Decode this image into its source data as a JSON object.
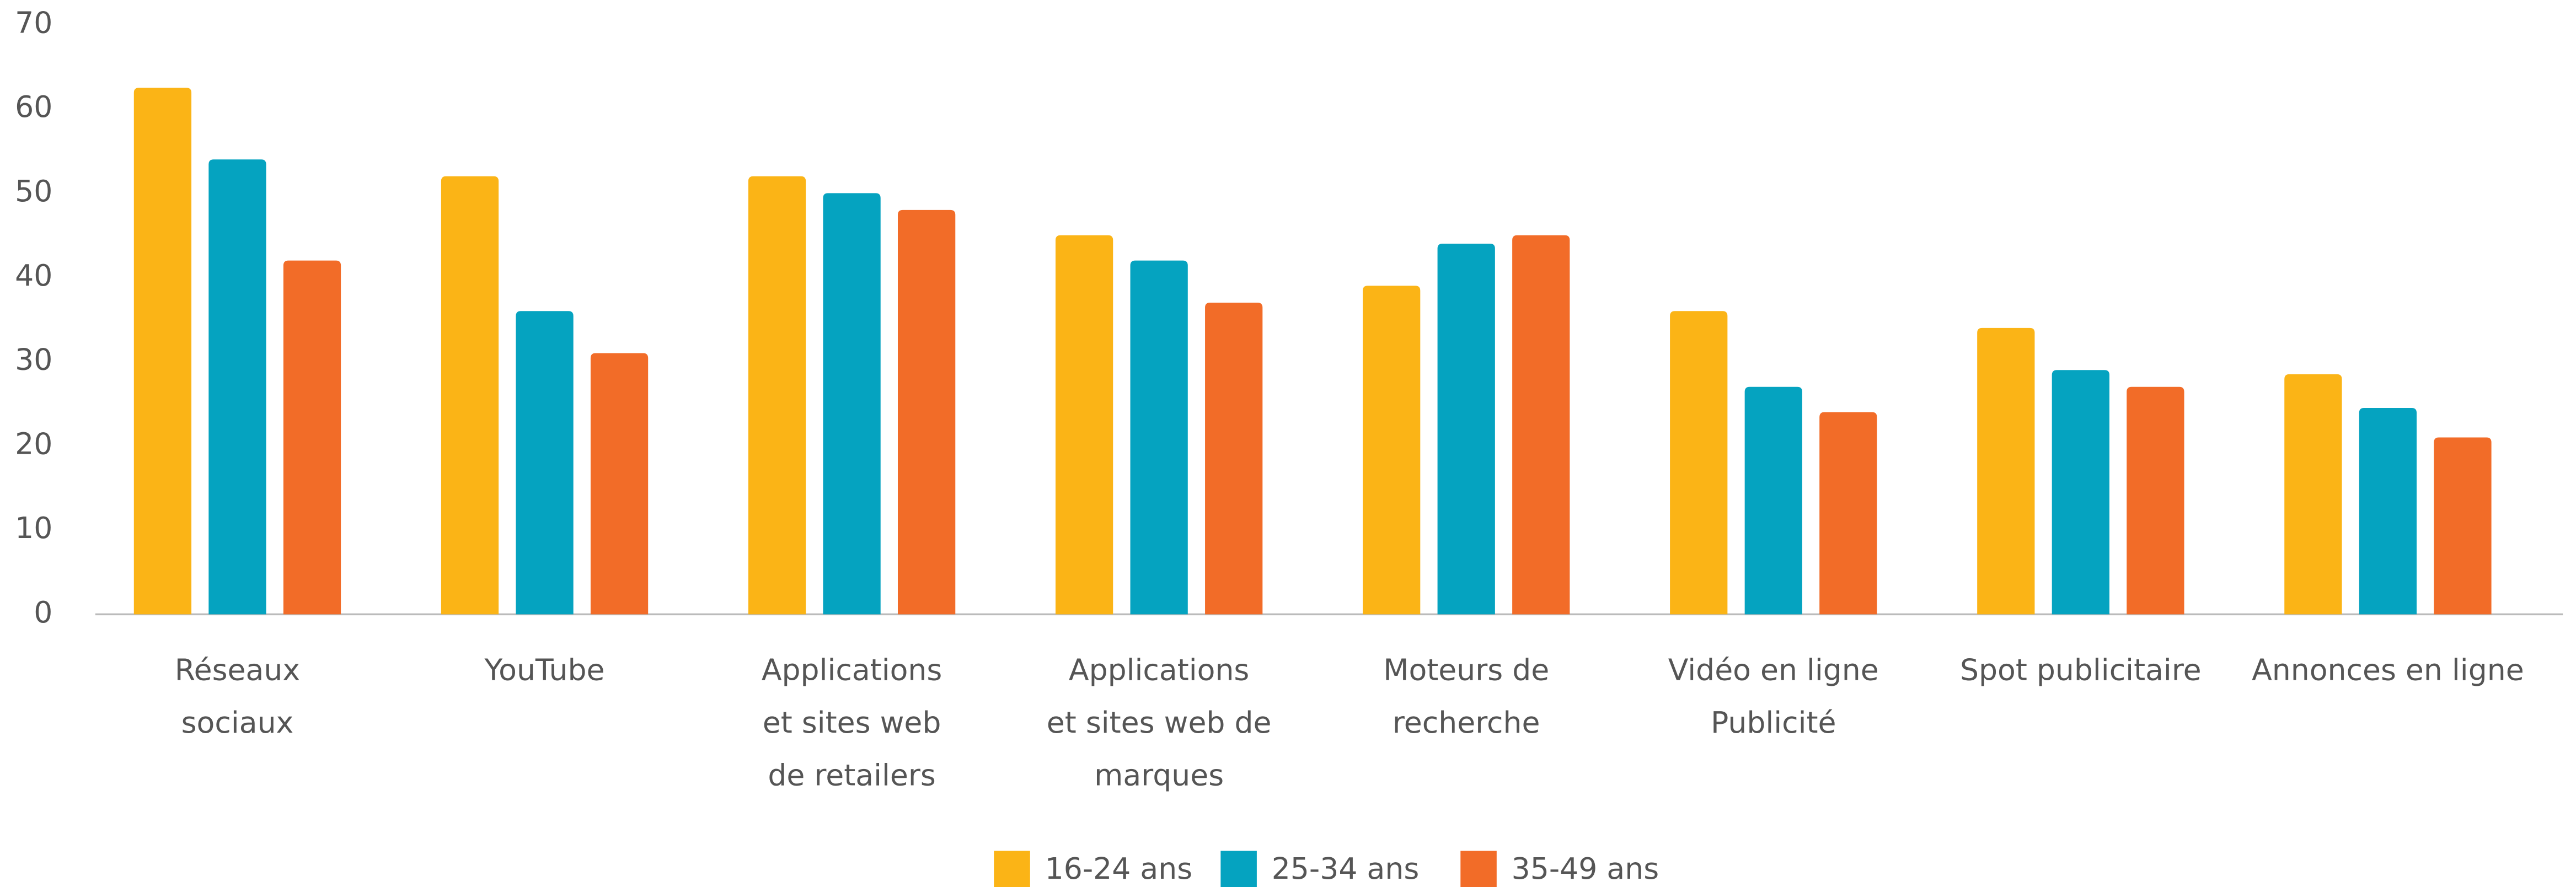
{
  "chart_data": {
    "type": "bar",
    "categories": [
      [
        "Réseaux",
        "sociaux"
      ],
      [
        "YouTube"
      ],
      [
        "Applications",
        "et sites web",
        "de retailers"
      ],
      [
        "Applications",
        "et sites web de",
        "marques"
      ],
      [
        "Moteurs de",
        "recherche"
      ],
      [
        "Vidéo en ligne",
        "Publicité"
      ],
      [
        "Spot publicitaire"
      ],
      [
        "Annonces en ligne"
      ]
    ],
    "series": [
      {
        "name": "16-24 ans",
        "color": "#fbb416",
        "values": [
          62.5,
          52,
          52,
          45,
          39,
          36,
          34,
          28.5
        ]
      },
      {
        "name": "25-34 ans",
        "color": "#05a3c0",
        "values": [
          54,
          36,
          50,
          42,
          44,
          27,
          29,
          24.5
        ]
      },
      {
        "name": "35-49 ans",
        "color": "#f26c28",
        "values": [
          42,
          31,
          48,
          37,
          45,
          24,
          27,
          21
        ]
      }
    ],
    "ylim": [
      0,
      70
    ],
    "yticks": [
      0,
      10,
      20,
      30,
      40,
      50,
      60,
      70
    ],
    "grid": false,
    "legend": "bottom"
  }
}
